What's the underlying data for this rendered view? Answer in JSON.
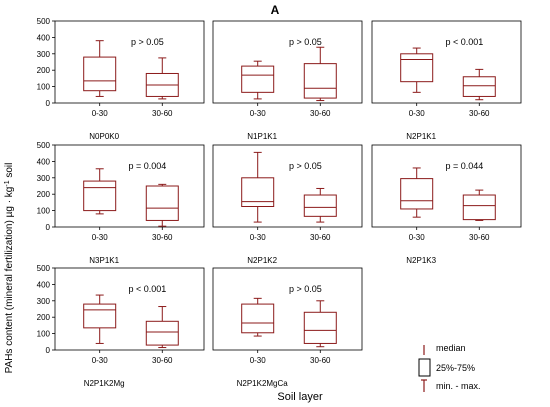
{
  "figure": {
    "panel_letter": "A",
    "y_axis_title": "PAHs content (mineral fertilization) µg · kg",
    "y_axis_title_sup": "-1",
    "y_axis_title_end": " soil",
    "x_axis_title": "Soil layer"
  },
  "legend": {
    "median_label": "median",
    "box_label": "25%-75%",
    "whisker_label": "min. - max."
  },
  "colors": {
    "box": "#8b1a1a",
    "axis": "#000000",
    "background": "#ffffff"
  },
  "chart_data": {
    "type": "boxplot",
    "y_range": [
      0,
      500
    ],
    "y_ticks": [
      0,
      100,
      200,
      300,
      400,
      500
    ],
    "categories": [
      "0-30",
      "30-60"
    ],
    "panels": [
      {
        "name": "N0P0K0",
        "p_value": "p > 0.05",
        "boxes": [
          {
            "min": 40,
            "q1": 75,
            "median": 135,
            "q3": 280,
            "max": 380
          },
          {
            "min": 25,
            "q1": 40,
            "median": 110,
            "q3": 180,
            "max": 275
          }
        ]
      },
      {
        "name": "N1P1K1",
        "p_value": "p > 0.05",
        "boxes": [
          {
            "min": 25,
            "q1": 65,
            "median": 170,
            "q3": 225,
            "max": 255
          },
          {
            "min": 15,
            "q1": 30,
            "median": 90,
            "q3": 240,
            "max": 340
          }
        ]
      },
      {
        "name": "N2P1K1",
        "p_value": "p < 0.001",
        "boxes": [
          {
            "min": 65,
            "q1": 130,
            "median": 265,
            "q3": 300,
            "max": 335
          },
          {
            "min": 20,
            "q1": 40,
            "median": 105,
            "q3": 160,
            "max": 205
          }
        ]
      },
      {
        "name": "N3P1K1",
        "p_value": "p = 0.004",
        "boxes": [
          {
            "min": 80,
            "q1": 100,
            "median": 240,
            "q3": 280,
            "max": 355
          },
          {
            "min": 5,
            "q1": 40,
            "median": 115,
            "q3": 250,
            "max": 260
          }
        ]
      },
      {
        "name": "N2P1K2",
        "p_value": "p > 0.05",
        "boxes": [
          {
            "min": 30,
            "q1": 125,
            "median": 155,
            "q3": 300,
            "max": 455
          },
          {
            "min": 30,
            "q1": 65,
            "median": 120,
            "q3": 195,
            "max": 235
          }
        ]
      },
      {
        "name": "N2P1K3",
        "p_value": "p = 0.044",
        "boxes": [
          {
            "min": 60,
            "q1": 110,
            "median": 160,
            "q3": 295,
            "max": 360
          },
          {
            "min": 40,
            "q1": 45,
            "median": 130,
            "q3": 195,
            "max": 225
          }
        ]
      },
      {
        "name": "N2P1K2Mg",
        "p_value": "p < 0.001",
        "boxes": [
          {
            "min": 40,
            "q1": 135,
            "median": 245,
            "q3": 280,
            "max": 335
          },
          {
            "min": 15,
            "q1": 30,
            "median": 110,
            "q3": 175,
            "max": 265
          }
        ]
      },
      {
        "name": "N2P1K2MgCa",
        "p_value": "p > 0.05",
        "boxes": [
          {
            "min": 85,
            "q1": 105,
            "median": 165,
            "q3": 280,
            "max": 315
          },
          {
            "min": 20,
            "q1": 40,
            "median": 120,
            "q3": 230,
            "max": 300
          }
        ]
      }
    ]
  }
}
